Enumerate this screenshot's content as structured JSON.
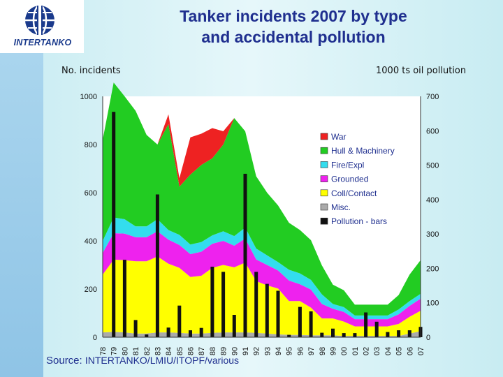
{
  "logo": {
    "text": "INTERTANKO"
  },
  "title_line1": "Tanker incidents 2007 by type",
  "title_line2": "and accidental pollution",
  "source_prefix": "Source:",
  "source_rest": "INTERTANKO/LMIU/ITOPF/various",
  "colors": {
    "war": "#ee2222",
    "hull": "#22cc22",
    "fire": "#33ddee",
    "grounded": "#ee22ee",
    "coll": "#ffff00",
    "misc": "#aaaaaa",
    "bars": "#111111",
    "plot_bg": "#ffffff"
  },
  "chart_data": {
    "type": "area",
    "xlabel": "",
    "ylabel_left": "No. incidents",
    "ylabel_right": "1000 ts oil pollution",
    "x": [
      "78",
      "79",
      "80",
      "81",
      "82",
      "83",
      "84",
      "85",
      "86",
      "87",
      "88",
      "89",
      "90",
      "91",
      "92",
      "93",
      "94",
      "95",
      "96",
      "97",
      "98",
      "99",
      "00",
      "01",
      "02",
      "03",
      "04",
      "05",
      "06",
      "07"
    ],
    "ylim_left": [
      0,
      1000
    ],
    "ylim_right": [
      0,
      700
    ],
    "yticks_left": [
      "0",
      "200",
      "400",
      "600",
      "800",
      "1000"
    ],
    "yticks_right": [
      "0",
      "100",
      "200",
      "300",
      "400",
      "500",
      "600",
      "700"
    ],
    "grid": false,
    "legend_position": "right",
    "stack_series": [
      {
        "name": "Misc.",
        "color_key": "misc",
        "values": [
          20,
          22,
          20,
          15,
          15,
          20,
          20,
          18,
          15,
          15,
          18,
          20,
          20,
          20,
          18,
          15,
          12,
          10,
          10,
          8,
          8,
          8,
          5,
          5,
          5,
          5,
          5,
          5,
          15,
          25
        ]
      },
      {
        "name": "Coll/Contact",
        "color_key": "coll",
        "values": [
          240,
          300,
          300,
          300,
          300,
          315,
          285,
          270,
          235,
          240,
          270,
          280,
          270,
          290,
          215,
          200,
          190,
          140,
          140,
          115,
          70,
          70,
          60,
          40,
          40,
          40,
          40,
          50,
          70,
          85
        ]
      },
      {
        "name": "Grounded",
        "color_key": "grounded",
        "values": [
          90,
          110,
          110,
          100,
          100,
          105,
          100,
          95,
          95,
          100,
          100,
          100,
          90,
          100,
          90,
          85,
          75,
          85,
          70,
          75,
          60,
          40,
          40,
          30,
          30,
          30,
          30,
          40,
          45,
          50
        ]
      },
      {
        "name": "Fire/Expl",
        "color_key": "fire",
        "values": [
          50,
          65,
          60,
          45,
          45,
          50,
          40,
          42,
          40,
          40,
          35,
          40,
          40,
          45,
          45,
          40,
          35,
          45,
          45,
          40,
          40,
          20,
          20,
          15,
          15,
          15,
          15,
          20,
          20,
          20
        ]
      },
      {
        "name": "Hull & Machinery",
        "color_key": "hull",
        "values": [
          420,
          560,
          510,
          480,
          380,
          310,
          440,
          200,
          290,
          320,
          320,
          360,
          490,
          400,
          300,
          260,
          235,
          195,
          180,
          165,
          120,
          80,
          70,
          45,
          45,
          45,
          45,
          60,
          110,
          140
        ]
      },
      {
        "name": "War",
        "color_key": "war",
        "values": [
          0,
          0,
          0,
          0,
          0,
          0,
          40,
          35,
          155,
          130,
          125,
          55,
          0,
          0,
          0,
          0,
          0,
          0,
          0,
          0,
          0,
          0,
          0,
          0,
          0,
          0,
          0,
          0,
          0,
          0
        ]
      }
    ],
    "bar_series": {
      "name": "Pollution - bars",
      "color_key": "bars",
      "axis": "right",
      "values": [
        0,
        655,
        225,
        50,
        8,
        415,
        28,
        92,
        20,
        27,
        205,
        190,
        65,
        475,
        190,
        155,
        135,
        7,
        88,
        75,
        13,
        25,
        12,
        12,
        72,
        45,
        15,
        20,
        20,
        30
      ]
    },
    "legend": [
      {
        "label": "War",
        "color_key": "war"
      },
      {
        "label": "Hull & Machinery",
        "color_key": "hull"
      },
      {
        "label": "Fire/Expl",
        "color_key": "fire"
      },
      {
        "label": "Grounded",
        "color_key": "grounded"
      },
      {
        "label": "Coll/Contact",
        "color_key": "coll"
      },
      {
        "label": "Misc.",
        "color_key": "misc"
      },
      {
        "label": "Pollution - bars",
        "color_key": "bars"
      }
    ]
  }
}
